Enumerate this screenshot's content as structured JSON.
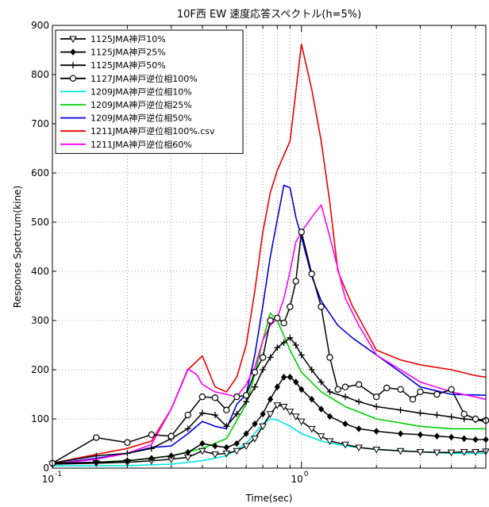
{
  "chart_data": {
    "type": "line",
    "title": "10F西 EW 速度応答スペクトル(h=5%)",
    "xlabel": "Time(sec)",
    "ylabel": "Response Spectrum(kine)",
    "xscale": "log",
    "xlim": [
      0.1,
      5.5
    ],
    "ylim": [
      0,
      900
    ],
    "yticks": [
      0,
      100,
      200,
      300,
      400,
      500,
      600,
      700,
      800,
      900
    ],
    "xticks": [
      {
        "base": "10",
        "exp": "-1",
        "value": 0.1
      },
      {
        "base": "10",
        "exp": "0",
        "value": 1
      }
    ],
    "grid": true,
    "legend_position": "top-left",
    "series": [
      {
        "name": "1125JMA神戸10%",
        "color": "#000000",
        "marker": "triangle-down",
        "x": [
          0.1,
          0.15,
          0.2,
          0.25,
          0.3,
          0.35,
          0.4,
          0.45,
          0.5,
          0.55,
          0.6,
          0.65,
          0.7,
          0.75,
          0.8,
          0.85,
          0.9,
          0.95,
          1.0,
          1.1,
          1.2,
          1.3,
          1.5,
          1.7,
          2.0,
          2.5,
          3.0,
          3.5,
          4.0,
          4.5,
          5.0,
          5.5
        ],
        "y": [
          8,
          10,
          12,
          15,
          18,
          22,
          35,
          28,
          30,
          35,
          45,
          60,
          85,
          110,
          128,
          125,
          115,
          105,
          95,
          80,
          65,
          55,
          48,
          42,
          38,
          35,
          33,
          32,
          32,
          33,
          33,
          34
        ]
      },
      {
        "name": "1125JMA神戸25%",
        "color": "#000000",
        "marker": "diamond",
        "x": [
          0.1,
          0.15,
          0.2,
          0.25,
          0.3,
          0.35,
          0.4,
          0.45,
          0.5,
          0.55,
          0.6,
          0.65,
          0.7,
          0.75,
          0.8,
          0.85,
          0.9,
          0.95,
          1.0,
          1.1,
          1.2,
          1.3,
          1.5,
          1.7,
          2.0,
          2.5,
          3.0,
          3.5,
          4.0,
          4.5,
          5.0,
          5.5
        ],
        "y": [
          10,
          12,
          15,
          20,
          25,
          32,
          50,
          45,
          42,
          50,
          70,
          90,
          110,
          140,
          165,
          185,
          185,
          175,
          160,
          140,
          120,
          105,
          90,
          80,
          75,
          70,
          68,
          65,
          63,
          60,
          58,
          58
        ]
      },
      {
        "name": "1125JMA神戸50%",
        "color": "#000000",
        "marker": "plus",
        "x": [
          0.1,
          0.15,
          0.2,
          0.25,
          0.3,
          0.35,
          0.4,
          0.45,
          0.5,
          0.55,
          0.6,
          0.65,
          0.7,
          0.75,
          0.8,
          0.85,
          0.9,
          0.95,
          1.0,
          1.1,
          1.2,
          1.3,
          1.5,
          1.7,
          2.0,
          2.5,
          3.0,
          3.5,
          4.0,
          4.5,
          5.0,
          5.5
        ],
        "y": [
          10,
          25,
          30,
          40,
          60,
          80,
          112,
          108,
          85,
          110,
          135,
          165,
          200,
          225,
          245,
          255,
          265,
          250,
          230,
          200,
          175,
          155,
          145,
          135,
          125,
          118,
          112,
          108,
          104,
          100,
          98,
          95
        ]
      },
      {
        "name": "1127JMA神戸逆位相100%",
        "color": "#000000",
        "marker": "circle",
        "x": [
          0.1,
          0.15,
          0.2,
          0.25,
          0.3,
          0.35,
          0.4,
          0.45,
          0.5,
          0.55,
          0.6,
          0.65,
          0.7,
          0.75,
          0.8,
          0.85,
          0.9,
          0.95,
          1.0,
          1.1,
          1.2,
          1.3,
          1.4,
          1.5,
          1.7,
          2.0,
          2.2,
          2.5,
          2.8,
          3.0,
          3.5,
          4.0,
          4.5,
          5.0,
          5.5
        ],
        "y": [
          10,
          62,
          52,
          68,
          65,
          108,
          145,
          143,
          118,
          145,
          148,
          195,
          225,
          300,
          305,
          295,
          328,
          380,
          480,
          395,
          328,
          225,
          160,
          165,
          170,
          145,
          163,
          160,
          140,
          155,
          150,
          160,
          110,
          100,
          97
        ]
      },
      {
        "name": "1209JMA神戸逆位相10%",
        "color": "#00e5e5",
        "marker": "none",
        "x": [
          0.1,
          0.2,
          0.3,
          0.4,
          0.5,
          0.6,
          0.7,
          0.75,
          0.8,
          0.9,
          1.0,
          1.2,
          1.5,
          2.0,
          3.0,
          4.0,
          5.5
        ],
        "y": [
          5,
          5,
          8,
          15,
          25,
          50,
          90,
          100,
          98,
          85,
          70,
          55,
          45,
          38,
          33,
          30,
          30
        ]
      },
      {
        "name": "1209JMA神戸逆位相25%",
        "color": "#00d000",
        "marker": "none",
        "x": [
          0.1,
          0.2,
          0.3,
          0.4,
          0.5,
          0.6,
          0.65,
          0.7,
          0.75,
          0.8,
          0.9,
          1.0,
          1.2,
          1.5,
          2.0,
          3.0,
          4.0,
          5.5
        ],
        "y": [
          8,
          15,
          25,
          40,
          60,
          130,
          190,
          260,
          315,
          300,
          240,
          195,
          155,
          125,
          100,
          85,
          80,
          80
        ]
      },
      {
        "name": "1209JMA神戸逆位相50%",
        "color": "#0000dd",
        "marker": "none",
        "x": [
          0.1,
          0.15,
          0.2,
          0.25,
          0.3,
          0.35,
          0.4,
          0.45,
          0.5,
          0.55,
          0.6,
          0.65,
          0.7,
          0.75,
          0.8,
          0.85,
          0.9,
          0.95,
          1.0,
          1.1,
          1.2,
          1.4,
          1.6,
          2.0,
          2.5,
          3.0,
          4.0,
          5.5
        ],
        "y": [
          8,
          20,
          30,
          42,
          45,
          70,
          95,
          85,
          80,
          130,
          150,
          230,
          330,
          430,
          505,
          575,
          570,
          510,
          470,
          390,
          340,
          290,
          265,
          230,
          195,
          165,
          150,
          148
        ]
      },
      {
        "name": "1211JMA神戸逆位相100%.csv",
        "color": "#ee0000",
        "marker": "none",
        "x": [
          0.1,
          0.15,
          0.2,
          0.25,
          0.3,
          0.35,
          0.4,
          0.45,
          0.5,
          0.55,
          0.6,
          0.65,
          0.7,
          0.75,
          0.8,
          0.9,
          1.0,
          1.1,
          1.2,
          1.3,
          1.4,
          1.6,
          2.0,
          2.5,
          3.0,
          4.0,
          5.0,
          5.5
        ],
        "y": [
          10,
          28,
          40,
          55,
          120,
          200,
          228,
          165,
          155,
          185,
          250,
          360,
          480,
          560,
          605,
          665,
          862,
          770,
          665,
          540,
          400,
          330,
          240,
          220,
          210,
          200,
          188,
          185
        ]
      },
      {
        "name": "1211JMA神戸逆位相60%",
        "color": "#ff00ff",
        "marker": "none",
        "x": [
          0.1,
          0.15,
          0.2,
          0.25,
          0.3,
          0.35,
          0.38,
          0.4,
          0.45,
          0.5,
          0.55,
          0.6,
          0.65,
          0.7,
          0.75,
          0.8,
          0.85,
          0.9,
          0.95,
          1.0,
          1.1,
          1.2,
          1.3,
          1.5,
          1.7,
          2.0,
          2.5,
          3.0,
          4.0,
          5.5
        ],
        "y": [
          8,
          18,
          30,
          48,
          120,
          202,
          190,
          170,
          155,
          150,
          145,
          170,
          205,
          260,
          290,
          305,
          345,
          400,
          460,
          480,
          510,
          535,
          470,
          345,
          290,
          230,
          200,
          175,
          155,
          140
        ]
      }
    ]
  }
}
